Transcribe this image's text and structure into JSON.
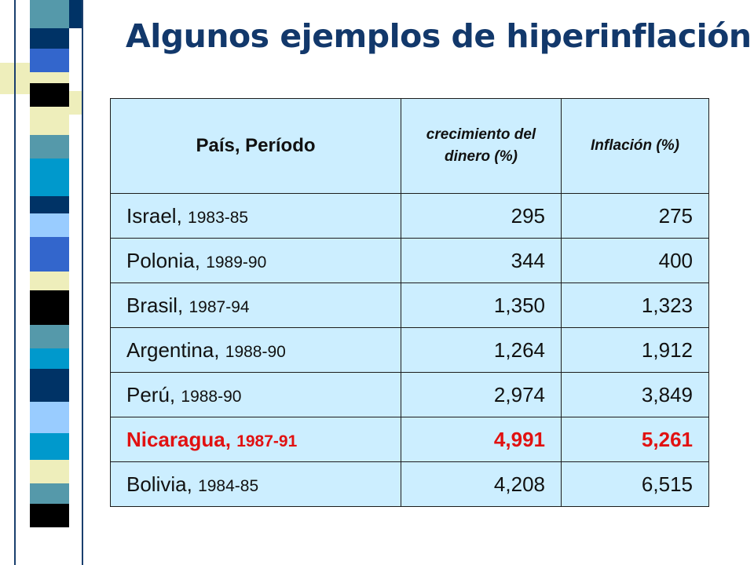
{
  "title": "Algunos ejemplos de hiperinflación",
  "table": {
    "headers": [
      "País, Período",
      "crecimiento del dinero (%)",
      "Inflación (%)"
    ],
    "rows": [
      {
        "country": "Israel,",
        "period": "1983-85",
        "money_growth": "295",
        "inflation": "275",
        "highlight": false
      },
      {
        "country": "Polonia,",
        "period": "1989-90",
        "money_growth": "344",
        "inflation": "400",
        "highlight": false
      },
      {
        "country": "Brasil,",
        "period": "1987-94",
        "money_growth": "1,350",
        "inflation": "1,323",
        "highlight": false
      },
      {
        "country": "Argentina,",
        "period": "1988-90",
        "money_growth": "1,264",
        "inflation": "1,912",
        "highlight": false
      },
      {
        "country": "Perú,",
        "period": "1988-90",
        "money_growth": "2,974",
        "inflation": "3,849",
        "highlight": false
      },
      {
        "country": "Nicaragua,",
        "period": "1987-91",
        "money_growth": "4,991",
        "inflation": "5,261",
        "highlight": true
      },
      {
        "country": "Bolivia,",
        "period": "1984-85",
        "money_growth": "4,208",
        "inflation": "6,515",
        "highlight": false
      }
    ]
  },
  "colors": {
    "title": "#12386b",
    "table_fill": "#cceeff",
    "highlight_text": "#e11111",
    "mosaic": [
      "#003366",
      "#3366cc",
      "#5599aa",
      "#0099cc",
      "#99ccff",
      "#eeeebb",
      "#000000",
      "#ffffff"
    ]
  }
}
